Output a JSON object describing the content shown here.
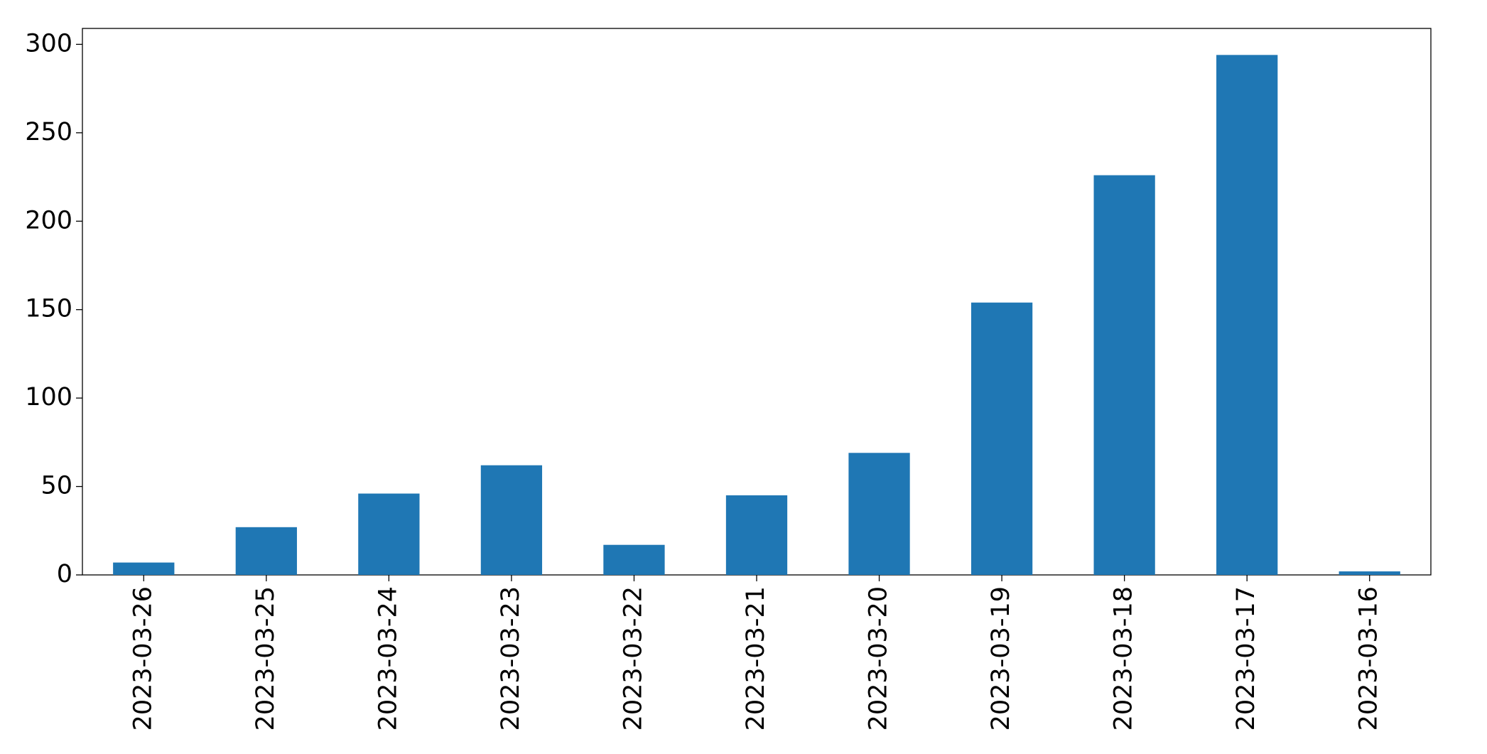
{
  "chart_data": {
    "type": "bar",
    "categories": [
      "2023-03-26",
      "2023-03-25",
      "2023-03-24",
      "2023-03-23",
      "2023-03-22",
      "2023-03-21",
      "2023-03-20",
      "2023-03-19",
      "2023-03-18",
      "2023-03-17",
      "2023-03-16"
    ],
    "values": [
      7,
      27,
      46,
      62,
      17,
      45,
      69,
      154,
      226,
      294,
      2
    ],
    "color": "#1f77b4",
    "ylim": [
      0,
      309
    ],
    "yticks": [
      0,
      50,
      100,
      150,
      200,
      250,
      300
    ],
    "grid": false
  }
}
